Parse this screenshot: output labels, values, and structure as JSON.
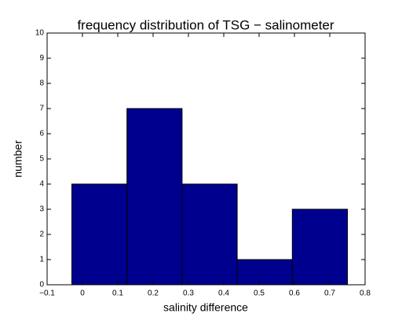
{
  "chart_data": {
    "type": "histogram",
    "title": "frequency distribution of TSG − salinometer",
    "xlabel": "salinity difference",
    "ylabel": "number",
    "bins": [
      -0.03,
      0.126,
      0.282,
      0.438,
      0.594,
      0.75
    ],
    "values": [
      4,
      7,
      4,
      1,
      3
    ],
    "color": "#00008f",
    "xlim": [
      -0.1,
      0.8
    ],
    "xticks": [
      {
        "value": -0.1,
        "label": "−0.1"
      },
      0,
      0.1,
      0.2,
      0.3,
      0.4,
      0.5,
      0.6,
      0.7,
      0.8
    ],
    "ylim": [
      0,
      10
    ],
    "yticks": [
      0,
      1,
      2,
      3,
      4,
      5,
      6,
      7,
      8,
      9,
      10
    ]
  }
}
